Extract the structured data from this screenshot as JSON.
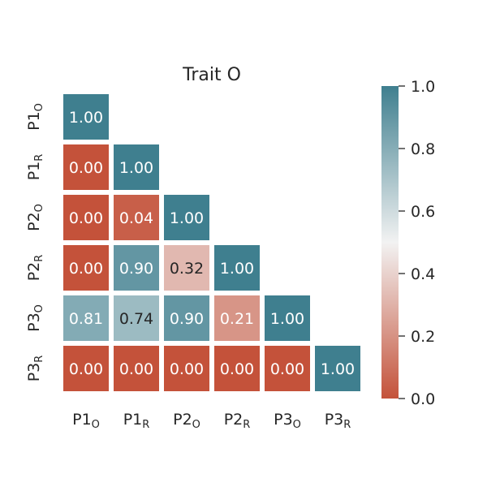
{
  "chart_data": {
    "type": "heatmap",
    "title": "Trait O",
    "xlabel": "",
    "ylabel": "",
    "rows": [
      {
        "base": "P1",
        "sub": "O"
      },
      {
        "base": "P1",
        "sub": "R"
      },
      {
        "base": "P2",
        "sub": "O"
      },
      {
        "base": "P2",
        "sub": "R"
      },
      {
        "base": "P3",
        "sub": "O"
      },
      {
        "base": "P3",
        "sub": "R"
      }
    ],
    "columns": [
      {
        "base": "P1",
        "sub": "O"
      },
      {
        "base": "P1",
        "sub": "R"
      },
      {
        "base": "P2",
        "sub": "O"
      },
      {
        "base": "P2",
        "sub": "R"
      },
      {
        "base": "P3",
        "sub": "O"
      },
      {
        "base": "P3",
        "sub": "R"
      }
    ],
    "values": [
      [
        1.0
      ],
      [
        0.0,
        1.0
      ],
      [
        0.0,
        0.04,
        1.0
      ],
      [
        0.0,
        0.9,
        0.32,
        1.0
      ],
      [
        0.81,
        0.74,
        0.9,
        0.21,
        1.0
      ],
      [
        0.0,
        0.0,
        0.0,
        0.0,
        0.0,
        1.0
      ]
    ],
    "labels": [
      [
        "1.00"
      ],
      [
        "0.00",
        "1.00"
      ],
      [
        "0.00",
        "0.04",
        "1.00"
      ],
      [
        "0.00",
        "0.90",
        "0.32",
        "1.00"
      ],
      [
        "0.81",
        "0.74",
        "0.90",
        "0.21",
        "1.00"
      ],
      [
        "0.00",
        "0.00",
        "0.00",
        "0.00",
        "0.00",
        "1.00"
      ]
    ],
    "mask": "upper-triangle",
    "colorbar": {
      "range": [
        0.0,
        1.0
      ],
      "ticks": [
        "0.0",
        "0.2",
        "0.4",
        "0.6",
        "0.8",
        "1.0"
      ],
      "colors": {
        "low": "#c4523a",
        "mid": "#f2f2f2",
        "high": "#3f7f8f"
      }
    }
  }
}
